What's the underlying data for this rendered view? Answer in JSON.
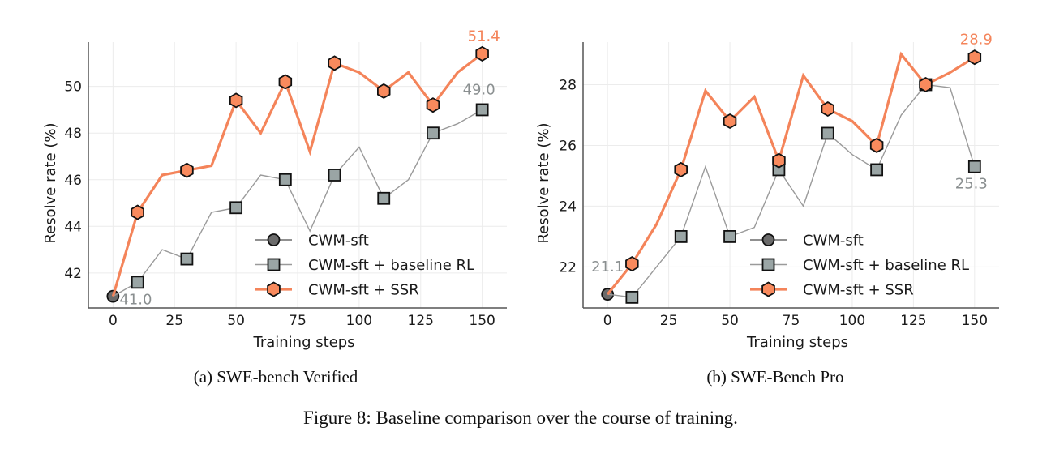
{
  "figure_caption": "Figure 8: Baseline comparison over the course of training.",
  "colors": {
    "sft": "#6b6b6b",
    "baseline": "#9aa5a5",
    "baseline_line": "#9a9a9a",
    "ssr": "#f4845a",
    "ssr_fill": "#f98a5d",
    "grid": "#ececec",
    "axis": "#555555",
    "ann_gray": "#8a8f90"
  },
  "chart_data": [
    {
      "type": "line",
      "caption": "(a) SWE-bench Verified",
      "xlabel": "Training steps",
      "ylabel": "Resolve rate (%)",
      "xlim": [
        -10,
        160
      ],
      "ylim": [
        40.5,
        51.9
      ],
      "xticks": [
        "0",
        "25",
        "50",
        "75",
        "100",
        "125",
        "150"
      ],
      "xtick_values": [
        0,
        25,
        50,
        75,
        100,
        125,
        150
      ],
      "yticks": [
        "42",
        "44",
        "46",
        "48",
        "50"
      ],
      "ytick_values": [
        42,
        44,
        46,
        48,
        50
      ],
      "grid": true,
      "legend_position": "lower-right",
      "x": [
        0,
        10,
        20,
        30,
        40,
        50,
        60,
        70,
        80,
        90,
        100,
        110,
        120,
        130,
        140,
        150
      ],
      "series": [
        {
          "name": "CWM-sft",
          "key": "sft",
          "x": [
            0
          ],
          "values": [
            41.0
          ]
        },
        {
          "name": "CWM-sft + baseline RL",
          "key": "baseline",
          "values": [
            41.0,
            41.6,
            43.0,
            42.6,
            44.6,
            44.8,
            46.2,
            46.0,
            43.8,
            46.2,
            47.4,
            45.2,
            46.0,
            48.0,
            48.4,
            49.0
          ],
          "marker_every": 2,
          "marker_offset": 1
        },
        {
          "name": "CWM-sft + SSR",
          "key": "ssr",
          "values": [
            41.0,
            44.6,
            46.2,
            46.4,
            46.6,
            49.4,
            48.0,
            50.2,
            47.2,
            51.0,
            50.6,
            49.8,
            50.6,
            49.2,
            50.6,
            51.4
          ],
          "marker_every": 2,
          "marker_offset": 1
        }
      ],
      "annotations": [
        {
          "text": "41.0",
          "series": "sft",
          "x": 0,
          "y": 41.0
        },
        {
          "text": "49.0",
          "series": "baseline",
          "x": 150,
          "y": 49.0
        },
        {
          "text": "51.4",
          "series": "ssr",
          "x": 150,
          "y": 51.4
        }
      ]
    },
    {
      "type": "line",
      "caption": "(b) SWE-Bench Pro",
      "xlabel": "Training steps",
      "ylabel": "Resolve rate (%)",
      "xlim": [
        -10,
        160
      ],
      "ylim": [
        20.65,
        29.4
      ],
      "xticks": [
        "0",
        "25",
        "50",
        "75",
        "100",
        "125",
        "150"
      ],
      "xtick_values": [
        0,
        25,
        50,
        75,
        100,
        125,
        150
      ],
      "yticks": [
        "22",
        "24",
        "26",
        "28"
      ],
      "ytick_values": [
        22,
        24,
        26,
        28
      ],
      "grid": true,
      "legend_position": "lower-right",
      "x": [
        0,
        10,
        20,
        30,
        40,
        50,
        60,
        70,
        80,
        90,
        100,
        110,
        120,
        130,
        140,
        150
      ],
      "series": [
        {
          "name": "CWM-sft",
          "key": "sft",
          "x": [
            0
          ],
          "values": [
            21.1
          ]
        },
        {
          "name": "CWM-sft + baseline RL",
          "key": "baseline",
          "values": [
            21.1,
            21.0,
            22.0,
            23.0,
            25.3,
            23.0,
            23.3,
            25.2,
            24.0,
            26.4,
            25.7,
            25.2,
            27.0,
            28.0,
            27.9,
            25.3
          ],
          "marker_every": 2,
          "marker_offset": 1
        },
        {
          "name": "CWM-sft + SSR",
          "key": "ssr",
          "values": [
            21.1,
            22.1,
            23.4,
            25.2,
            27.8,
            26.8,
            27.6,
            25.5,
            28.3,
            27.2,
            26.8,
            26.0,
            29.0,
            28.0,
            28.4,
            28.9
          ],
          "marker_every": 2,
          "marker_offset": 1
        }
      ],
      "annotations": [
        {
          "text": "21.1",
          "series": "sft",
          "x": 0,
          "y": 21.1
        },
        {
          "text": "25.3",
          "series": "baseline",
          "x": 150,
          "y": 25.3
        },
        {
          "text": "28.9",
          "series": "ssr",
          "x": 150,
          "y": 28.9
        }
      ]
    }
  ]
}
